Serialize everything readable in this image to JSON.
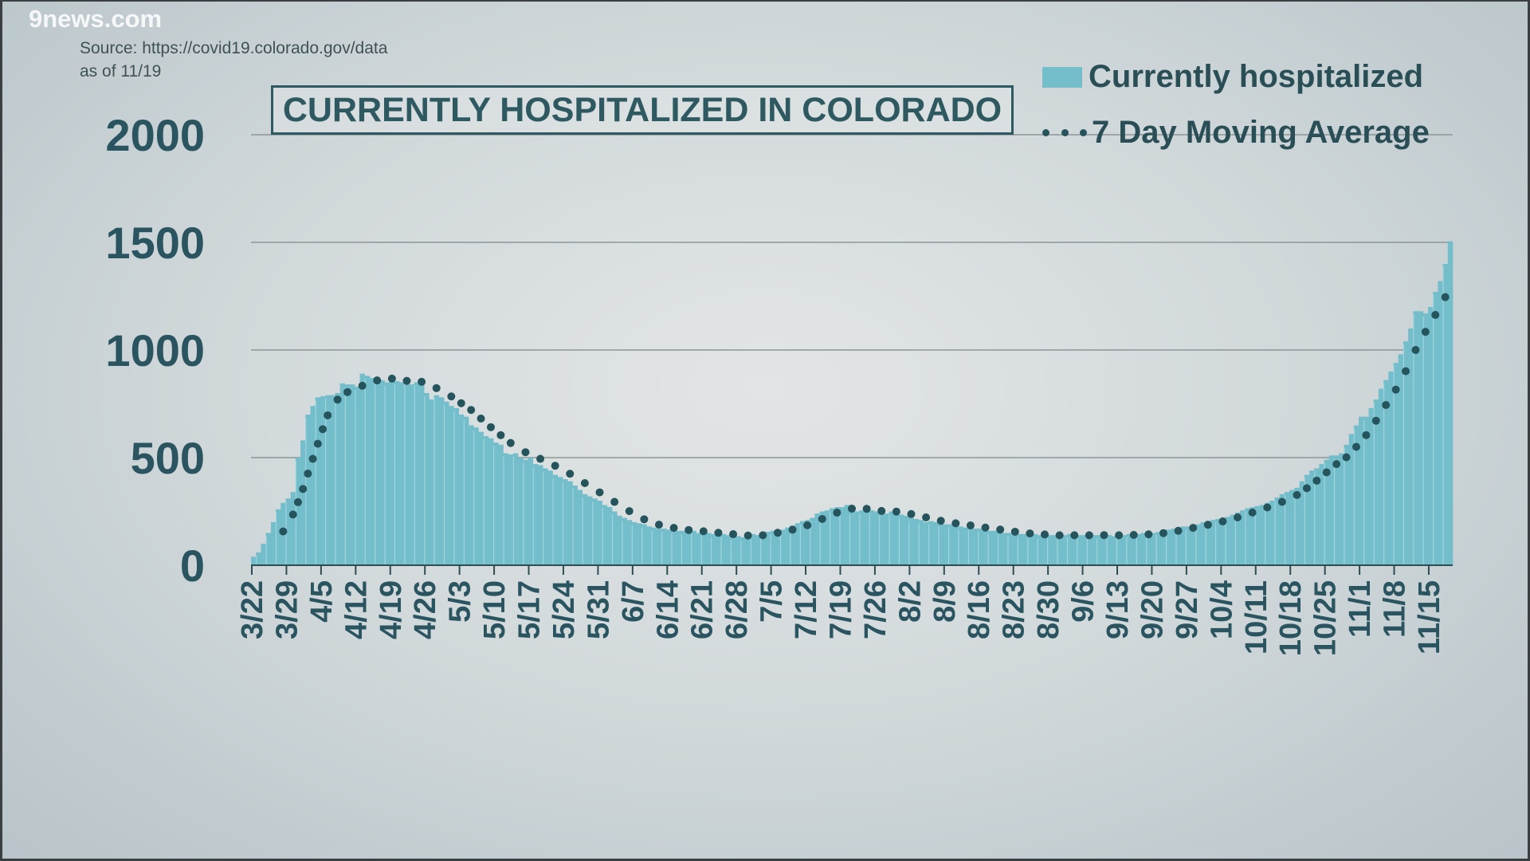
{
  "watermark": "9news.com",
  "source": {
    "line1": "Source: https://covid19.colorado.gov/data",
    "line2": "as of 11/19"
  },
  "colors": {
    "bar": "#74bdcb",
    "bar_separator": "#a9dbe4",
    "moving_average": "#25545c",
    "text": "#2a4e55",
    "grid": "#8c9598"
  },
  "chart_data": {
    "type": "bar",
    "title": "CURRENTLY HOSPITALIZED IN COLORADO",
    "legend": {
      "placement": "top-right",
      "entries": [
        "Currently hospitalized",
        "7 Day Moving Average"
      ]
    },
    "ylim": [
      0,
      2000
    ],
    "yticks": [
      "0",
      "500",
      "1000",
      "1500",
      "2000"
    ],
    "grid": true,
    "x_start": "3/22",
    "x_end": "11/19",
    "xtick_labels": [
      "3/22",
      "3/29",
      "4/5",
      "4/12",
      "4/19",
      "4/26",
      "5/3",
      "5/10",
      "5/17",
      "5/24",
      "5/31",
      "6/7",
      "6/14",
      "6/21",
      "6/28",
      "7/5",
      "7/12",
      "7/19",
      "7/26",
      "8/2",
      "8/9",
      "8/16",
      "8/23",
      "8/30",
      "9/6",
      "9/13",
      "9/20",
      "9/27",
      "10/4",
      "10/11",
      "10/18",
      "10/25",
      "11/1",
      "11/8",
      "11/15"
    ],
    "series": [
      {
        "name": "Currently hospitalized",
        "type": "bar",
        "values": [
          40,
          60,
          100,
          150,
          200,
          260,
          290,
          310,
          340,
          500,
          580,
          700,
          740,
          780,
          785,
          790,
          790,
          800,
          845,
          840,
          840,
          830,
          890,
          880,
          870,
          860,
          860,
          850,
          860,
          855,
          850,
          860,
          840,
          850,
          850,
          800,
          770,
          790,
          780,
          760,
          740,
          730,
          700,
          690,
          650,
          640,
          620,
          600,
          590,
          570,
          560,
          520,
          515,
          520,
          500,
          490,
          500,
          470,
          465,
          450,
          440,
          420,
          410,
          400,
          390,
          370,
          350,
          330,
          320,
          310,
          300,
          280,
          270,
          250,
          230,
          220,
          210,
          200,
          195,
          190,
          180,
          175,
          170,
          170,
          165,
          165,
          160,
          160,
          155,
          160,
          150,
          155,
          150,
          145,
          140,
          145,
          140,
          135,
          135,
          130,
          140,
          145,
          140,
          150,
          155,
          160,
          165,
          165,
          175,
          185,
          195,
          205,
          210,
          220,
          240,
          250,
          255,
          265,
          270,
          270,
          280,
          250,
          250,
          255,
          260,
          255,
          250,
          245,
          240,
          250,
          245,
          235,
          230,
          220,
          215,
          210,
          200,
          205,
          200,
          195,
          190,
          190,
          185,
          180,
          175,
          180,
          170,
          170,
          165,
          160,
          160,
          155,
          150,
          150,
          150,
          145,
          145,
          140,
          145,
          140,
          135,
          140,
          140,
          135,
          140,
          145,
          140,
          140,
          140,
          135,
          140,
          140,
          145,
          140,
          135,
          140,
          140,
          145,
          140,
          145,
          150,
          145,
          150,
          155,
          160,
          165,
          170,
          175,
          180,
          180,
          185,
          190,
          200,
          205,
          210,
          215,
          220,
          225,
          235,
          245,
          255,
          265,
          270,
          275,
          280,
          290,
          300,
          315,
          330,
          340,
          350,
          360,
          390,
          420,
          440,
          450,
          470,
          490,
          510,
          510,
          520,
          560,
          610,
          650,
          690,
          690,
          730,
          770,
          820,
          860,
          900,
          940,
          980,
          1040,
          1100,
          1180,
          1180,
          1170,
          1200,
          1270,
          1320,
          1400,
          1505
        ]
      },
      {
        "name": "7 Day Moving Average",
        "type": "dotted-line",
        "window_days": 7
      }
    ]
  }
}
